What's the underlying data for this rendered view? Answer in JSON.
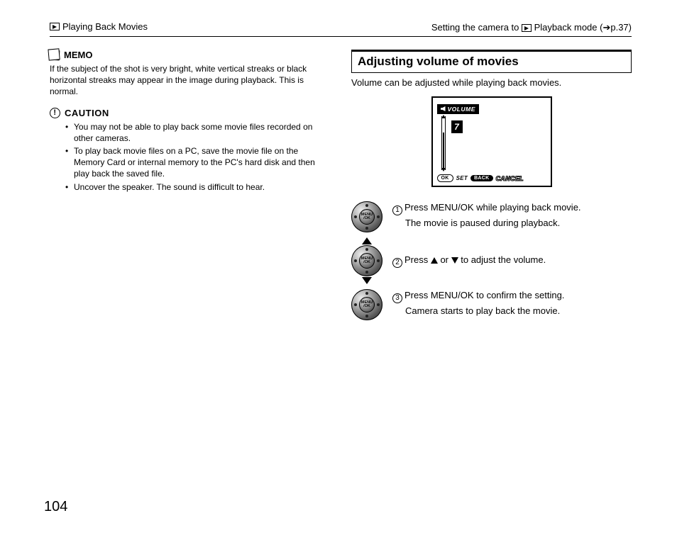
{
  "header": {
    "left_label": "Playing Back Movies",
    "right_prefix": "Setting the camera to ",
    "right_suffix": " Playback mode (",
    "right_page_ref": "p.37)"
  },
  "memo": {
    "heading": "MEMO",
    "text": "If the subject of the shot is very bright, white vertical streaks or black horizontal streaks may appear in the image during playback. This is normal."
  },
  "caution": {
    "heading": "CAUTION",
    "items": [
      "You may not be able to play back some movie files recorded on other cameras.",
      "To play back movie files on a PC, save the movie file on the Memory Card or internal memory to the PC's hard disk and then play back the saved file.",
      "Uncover the speaker. The sound is difficult to hear."
    ]
  },
  "section": {
    "title": "Adjusting volume of movies",
    "intro": "Volume can be adjusted while playing back movies."
  },
  "lcd": {
    "volume_label": "VOLUME",
    "volume_value": "7",
    "volume_fill_percent": 70,
    "ok_pill": "OK",
    "set_label": "SET",
    "back_pill": "BACK",
    "cancel_label": "CANCEL"
  },
  "steps": [
    {
      "num": "1",
      "line1": "Press MENU/OK while playing back movie.",
      "line2": "The movie is paused during playback.",
      "arrows": false
    },
    {
      "num": "2",
      "line1_pre": "Press ",
      "line1_mid": " or ",
      "line1_post": " to adjust the volume.",
      "arrows": true
    },
    {
      "num": "3",
      "line1": "Press MENU/OK to confirm the setting.",
      "line2": "Camera starts to play back the movie.",
      "arrows": false
    }
  ],
  "dial_center_label": "MENU\n/OK",
  "page_number": "104"
}
